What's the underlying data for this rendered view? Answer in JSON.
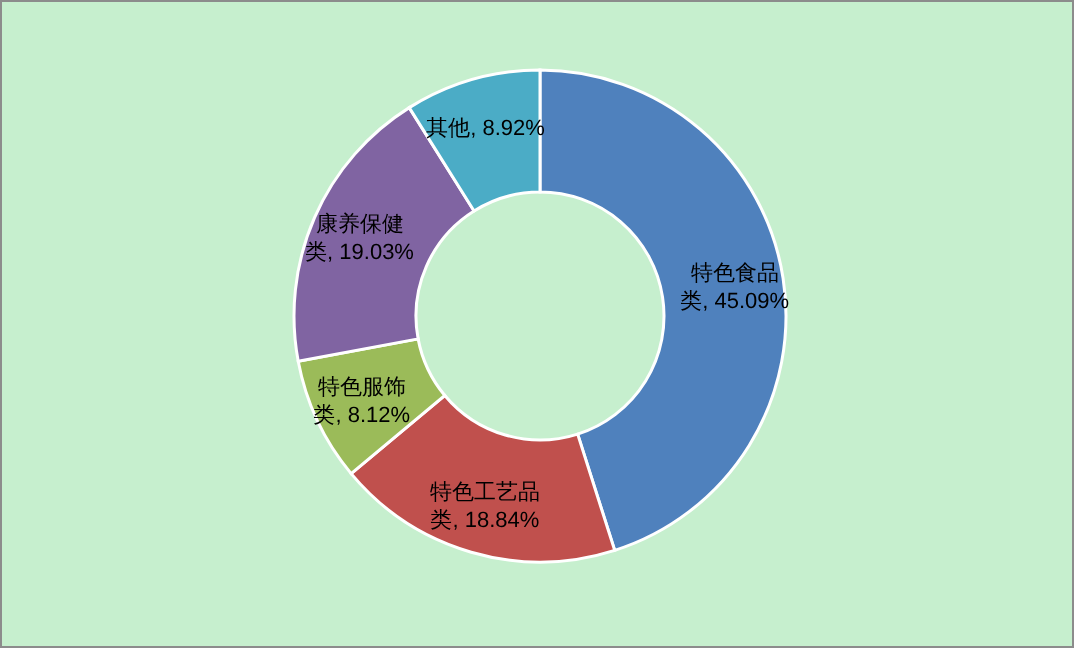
{
  "chart_data": {
    "type": "donut",
    "categories": [
      "特色食品类",
      "特色工艺品类",
      "特色服饰类",
      "康养保健类",
      "其他"
    ],
    "values": [
      45.09,
      18.84,
      8.12,
      19.03,
      8.92
    ],
    "value_labels": [
      "45.09%",
      "18.84%",
      "8.12%",
      "19.03%",
      "8.92%"
    ],
    "colors": [
      "#4f81bd",
      "#c0504d",
      "#9bbb59",
      "#8064a2",
      "#4bacc6"
    ]
  }
}
